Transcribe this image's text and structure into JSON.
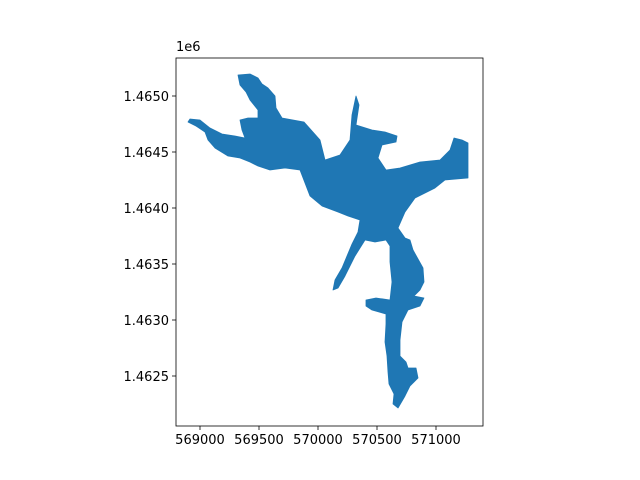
{
  "plot": {
    "type": "geo-polygon",
    "x_offset_label": "",
    "y_offset_label": "1e6",
    "x_ticks": [
      {
        "value": 569000,
        "label": "569000"
      },
      {
        "value": 569500,
        "label": "569500"
      },
      {
        "value": 570000,
        "label": "570000"
      },
      {
        "value": 570500,
        "label": "570500"
      },
      {
        "value": 571000,
        "label": "571000"
      }
    ],
    "y_ticks": [
      {
        "value": 1.4625,
        "label": "1.4625"
      },
      {
        "value": 1.463,
        "label": "1.4630"
      },
      {
        "value": 1.4635,
        "label": "1.4635"
      },
      {
        "value": 1.464,
        "label": "1.4640"
      },
      {
        "value": 1.4645,
        "label": "1.4645"
      },
      {
        "value": 1.465,
        "label": "1.4650"
      }
    ],
    "colors": {
      "fill": "#1f77b4",
      "axes": "#000000",
      "background": "#ffffff"
    }
  }
}
